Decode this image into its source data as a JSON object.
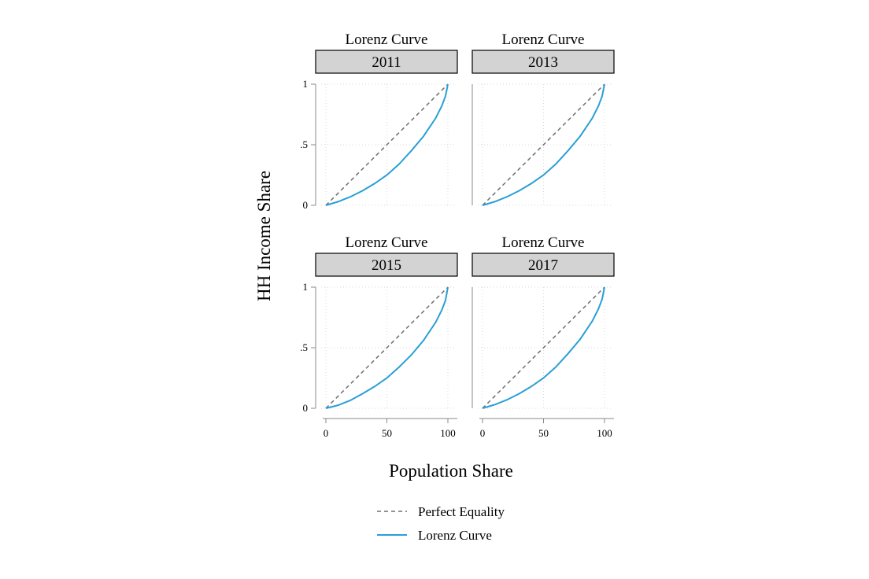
{
  "chart_data": {
    "type": "line",
    "layout": "2x2 facets",
    "facet_title": "Lorenz Curve",
    "xlabel": "Population Share",
    "ylabel": "HH Income Share",
    "xlim": [
      0,
      100
    ],
    "ylim": [
      0,
      1
    ],
    "x_ticks": [
      "0",
      "50",
      "100"
    ],
    "y_ticks": [
      "0",
      ".5",
      "1"
    ],
    "grid": true,
    "legend_position": "bottom",
    "legend": [
      {
        "name": "Perfect Equality",
        "style": "dashed",
        "color": "#6e6e6e"
      },
      {
        "name": "Lorenz Curve",
        "style": "solid",
        "color": "#2a9fd6"
      }
    ],
    "facets": [
      {
        "label": "2011",
        "series": [
          {
            "name": "Perfect Equality",
            "x": [
              0,
              100
            ],
            "y": [
              0,
              1
            ]
          },
          {
            "name": "Lorenz Curve",
            "x": [
              0,
              10,
              20,
              30,
              40,
              50,
              60,
              70,
              80,
              90,
              95,
              98,
              100
            ],
            "y": [
              0,
              0.03,
              0.07,
              0.12,
              0.18,
              0.25,
              0.34,
              0.45,
              0.57,
              0.72,
              0.82,
              0.9,
              1
            ]
          }
        ]
      },
      {
        "label": "2013",
        "series": [
          {
            "name": "Perfect Equality",
            "x": [
              0,
              100
            ],
            "y": [
              0,
              1
            ]
          },
          {
            "name": "Lorenz Curve",
            "x": [
              0,
              10,
              20,
              30,
              40,
              50,
              60,
              70,
              80,
              90,
              95,
              98,
              100
            ],
            "y": [
              0,
              0.03,
              0.07,
              0.12,
              0.18,
              0.25,
              0.34,
              0.45,
              0.57,
              0.72,
              0.82,
              0.9,
              1
            ]
          }
        ]
      },
      {
        "label": "2015",
        "series": [
          {
            "name": "Perfect Equality",
            "x": [
              0,
              100
            ],
            "y": [
              0,
              1
            ]
          },
          {
            "name": "Lorenz Curve",
            "x": [
              0,
              10,
              20,
              30,
              40,
              50,
              60,
              70,
              80,
              90,
              95,
              98,
              100
            ],
            "y": [
              0,
              0.025,
              0.065,
              0.12,
              0.18,
              0.25,
              0.34,
              0.44,
              0.56,
              0.71,
              0.81,
              0.89,
              1
            ]
          }
        ]
      },
      {
        "label": "2017",
        "series": [
          {
            "name": "Perfect Equality",
            "x": [
              0,
              100
            ],
            "y": [
              0,
              1
            ]
          },
          {
            "name": "Lorenz Curve",
            "x": [
              0,
              10,
              20,
              30,
              40,
              50,
              60,
              70,
              80,
              90,
              95,
              98,
              100
            ],
            "y": [
              0,
              0.03,
              0.07,
              0.12,
              0.18,
              0.25,
              0.34,
              0.45,
              0.57,
              0.72,
              0.82,
              0.9,
              1
            ]
          }
        ]
      }
    ]
  }
}
